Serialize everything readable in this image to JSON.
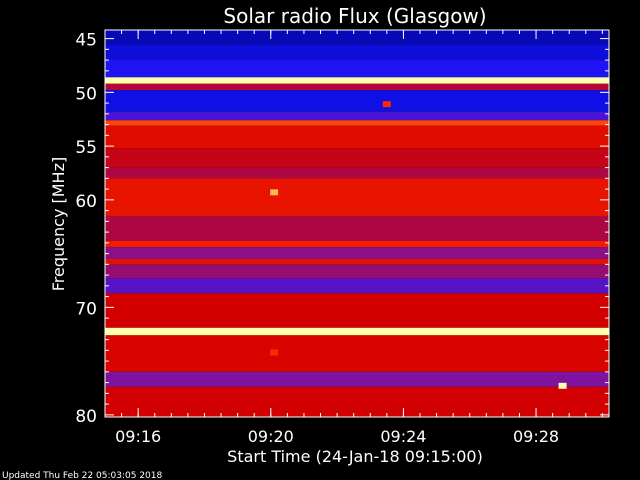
{
  "chart_data": {
    "type": "heatmap",
    "title": "Solar radio Flux (Glasgow)",
    "xlabel": "Start Time (24-Jan-18 09:15:00)",
    "ylabel": "Frequency [MHz]",
    "footer": "Updated Thu Feb 22 05:03:05 2018",
    "x_range_minutes": [
      0,
      15.2
    ],
    "y_range_mhz": [
      44.2,
      80.2
    ],
    "x_ticks": [
      {
        "minute": 1,
        "label": "09:16"
      },
      {
        "minute": 5,
        "label": "09:20"
      },
      {
        "minute": 9,
        "label": "09:24"
      },
      {
        "minute": 13,
        "label": "09:28"
      }
    ],
    "y_ticks": [
      {
        "mhz": 45,
        "label": "45"
      },
      {
        "mhz": 50,
        "label": "50"
      },
      {
        "mhz": 55,
        "label": "55"
      },
      {
        "mhz": 60,
        "label": "60"
      },
      {
        "mhz": 70,
        "label": "70"
      },
      {
        "mhz": 80,
        "label": "80"
      }
    ],
    "y_minor_ticks": [
      46,
      47,
      48,
      49,
      51,
      52,
      53,
      54,
      56,
      57,
      58,
      59,
      61,
      62,
      63,
      64,
      65,
      66,
      67,
      68,
      69,
      71,
      72,
      73,
      74,
      75,
      76,
      77,
      78,
      79
    ],
    "x_minor_step_minutes": 0.5,
    "frequency_bands": [
      {
        "from": 44.2,
        "to": 45.6,
        "level": 0.08
      },
      {
        "from": 45.6,
        "to": 47.0,
        "level": 0.14
      },
      {
        "from": 47.0,
        "to": 48.6,
        "level": 0.22
      },
      {
        "from": 48.6,
        "to": 49.2,
        "level": 1.0
      },
      {
        "from": 49.2,
        "to": 49.8,
        "level": 0.45
      },
      {
        "from": 49.8,
        "to": 51.8,
        "level": 0.16
      },
      {
        "from": 51.8,
        "to": 52.6,
        "level": 0.28
      },
      {
        "from": 52.6,
        "to": 53.1,
        "level": 0.74
      },
      {
        "from": 53.1,
        "to": 55.2,
        "level": 0.56
      },
      {
        "from": 55.2,
        "to": 57.0,
        "level": 0.48
      },
      {
        "from": 57.0,
        "to": 58.0,
        "level": 0.44
      },
      {
        "from": 58.0,
        "to": 61.5,
        "level": 0.6
      },
      {
        "from": 61.5,
        "to": 63.8,
        "level": 0.44
      },
      {
        "from": 63.8,
        "to": 64.4,
        "level": 0.64
      },
      {
        "from": 64.4,
        "to": 65.5,
        "level": 0.38
      },
      {
        "from": 65.5,
        "to": 66.0,
        "level": 0.58
      },
      {
        "from": 66.0,
        "to": 67.3,
        "level": 0.4
      },
      {
        "from": 67.3,
        "to": 68.7,
        "level": 0.3
      },
      {
        "from": 68.7,
        "to": 71.9,
        "level": 0.5
      },
      {
        "from": 71.9,
        "to": 72.6,
        "level": 1.0
      },
      {
        "from": 72.6,
        "to": 76.0,
        "level": 0.52
      },
      {
        "from": 76.0,
        "to": 77.4,
        "level": 0.36
      },
      {
        "from": 77.4,
        "to": 80.2,
        "level": 0.5
      }
    ],
    "bursts": [
      {
        "minute": 13.8,
        "mhz": 77.3,
        "level": 1.0
      },
      {
        "minute": 5.1,
        "mhz": 59.3,
        "level": 0.9
      },
      {
        "minute": 8.5,
        "mhz": 51.1,
        "level": 0.7
      },
      {
        "minute": 5.1,
        "mhz": 74.2,
        "level": 0.7
      }
    ]
  }
}
